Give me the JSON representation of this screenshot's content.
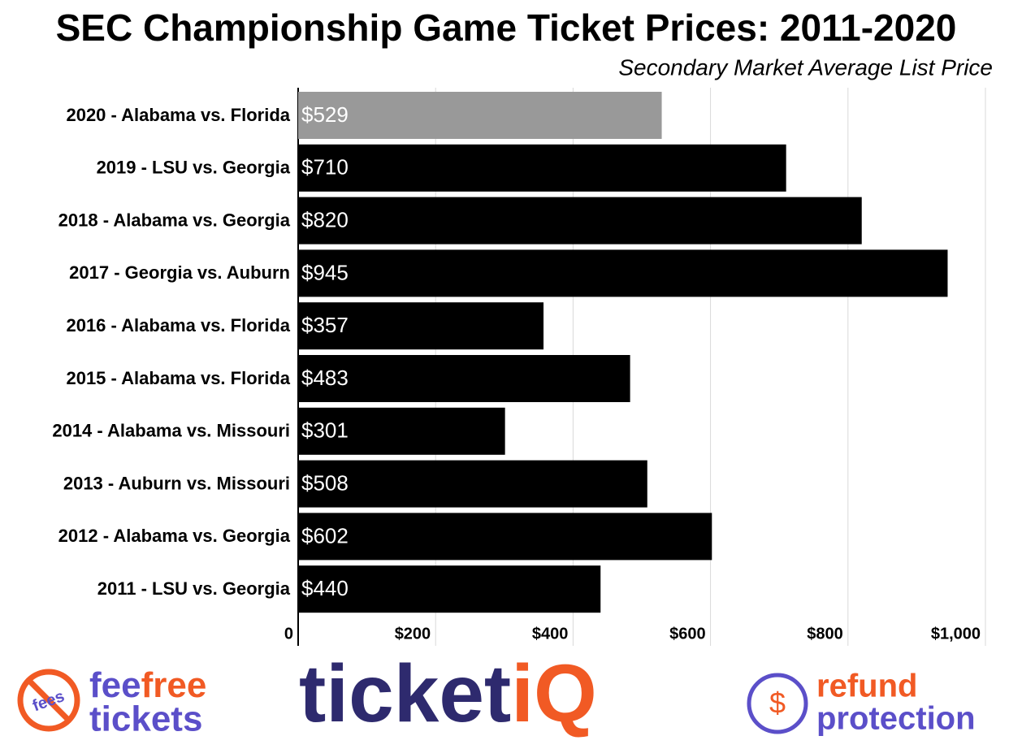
{
  "chart_data": {
    "type": "hbar",
    "title": "SEC Championship Game Ticket Prices: 2011-2020",
    "subtitle": "Secondary Market Average List Price",
    "categories": [
      "2020 - Alabama vs. Florida",
      "2019 - LSU vs. Georgia",
      "2018 - Alabama vs. Georgia",
      "2017 - Georgia vs. Auburn",
      "2016 - Alabama vs. Florida",
      "2015 - Alabama vs. Florida",
      "2014 - Alabama vs. Missouri",
      "2013 - Auburn vs. Missouri",
      "2012 - Alabama vs. Georgia",
      "2011 - LSU vs. Georgia"
    ],
    "values": [
      529,
      710,
      820,
      945,
      357,
      483,
      301,
      508,
      602,
      440
    ],
    "value_labels": [
      "$529",
      "$710",
      "$820",
      "$945",
      "$357",
      "$483",
      "$301",
      "$508",
      "$602",
      "$440"
    ],
    "colors": [
      "#999999",
      "#000000",
      "#000000",
      "#000000",
      "#000000",
      "#000000",
      "#000000",
      "#000000",
      "#000000",
      "#000000"
    ],
    "xlim": [
      0,
      1000
    ],
    "xticks": [
      0,
      {
        "value": 200,
        "label": "$200"
      },
      {
        "value": 400,
        "label": "$400"
      },
      {
        "value": 600,
        "label": "$600"
      },
      {
        "value": 800,
        "label": "$800"
      },
      {
        "value": 1000,
        "label": "$1,000"
      }
    ],
    "grid": true
  },
  "footer": {
    "left": {
      "badge": "fees",
      "a": "fee",
      "b": "free",
      "c": "tickets"
    },
    "center": {
      "a": "ticket",
      "b": "iQ"
    },
    "right": {
      "a": "refund",
      "b": "protection"
    }
  }
}
